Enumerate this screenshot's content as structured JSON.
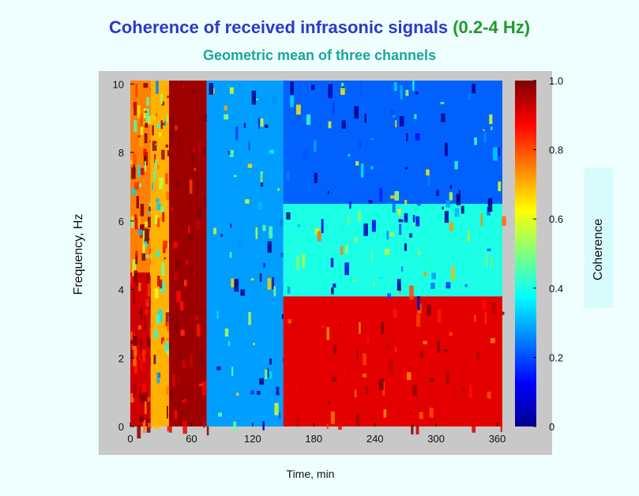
{
  "title": {
    "main": "Coherence of received infrasonic signals ",
    "band": "(0.2-4 Hz)"
  },
  "subtitle": "Geometric mean of three channels",
  "chart_data": {
    "type": "heatmap",
    "title": "Coherence of received infrasonic signals (0.2-4 Hz)",
    "subtitle": "Geometric mean of three channels",
    "xlabel": "Time, min",
    "ylabel": "Frequency, Hz",
    "colorbar_label": "Coherence",
    "xlim": [
      0,
      365
    ],
    "ylim": [
      0,
      10.1
    ],
    "xticks": [
      0,
      60,
      120,
      180,
      240,
      300,
      360
    ],
    "yticks": [
      0,
      2,
      4,
      6,
      8,
      10
    ],
    "colorbar_ticks": [
      0,
      0.2,
      0.4,
      0.6,
      0.8,
      1.0
    ],
    "colorbar_tick_labels": [
      "0",
      "0.2",
      "0.4",
      "0.6",
      "0.8",
      "1.0"
    ],
    "colormap": "jet",
    "clim": [
      0,
      1
    ],
    "regions": [
      {
        "t": [
          0,
          20
        ],
        "f": [
          0,
          4.5
        ],
        "coherence": 0.92
      },
      {
        "t": [
          0,
          20
        ],
        "f": [
          4.5,
          10.1
        ],
        "coherence": 0.75
      },
      {
        "t": [
          20,
          38
        ],
        "f": [
          0,
          10.1
        ],
        "coherence": 0.7
      },
      {
        "t": [
          38,
          75
        ],
        "f": [
          0,
          10.1
        ],
        "coherence": 0.97
      },
      {
        "t": [
          75,
          150
        ],
        "f": [
          0,
          10.1
        ],
        "coherence": 0.28
      },
      {
        "t": [
          150,
          365
        ],
        "f": [
          0,
          3.8
        ],
        "coherence": 0.9
      },
      {
        "t": [
          150,
          365
        ],
        "f": [
          3.8,
          6.5
        ],
        "coherence": 0.4
      },
      {
        "t": [
          150,
          365
        ],
        "f": [
          6.5,
          10.1
        ],
        "coherence": 0.22
      }
    ]
  }
}
